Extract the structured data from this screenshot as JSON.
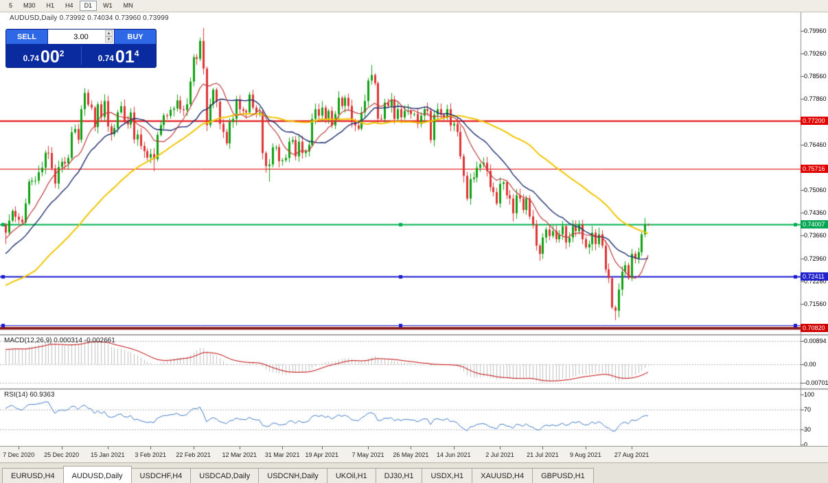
{
  "toolbar": {
    "periods": [
      {
        "label": "5"
      },
      {
        "label": "M30"
      },
      {
        "label": "H1"
      },
      {
        "label": "H4"
      },
      {
        "label": "D1",
        "active": true
      },
      {
        "label": "W1"
      },
      {
        "label": "MN"
      }
    ]
  },
  "chart_header": {
    "text": "AUDUSD,Daily 0.73992 0.74034 0.73960 0.73999"
  },
  "trade_panel": {
    "sell_label": "SELL",
    "buy_label": "BUY",
    "volume": "3.00",
    "bid_main": "0.74",
    "bid_big": "00",
    "bid_sup": "2",
    "ask_main": "0.74",
    "ask_big": "01",
    "ask_sup": "4"
  },
  "price_axis": {
    "ticks": [
      "0.79960",
      "0.79260",
      "0.78560",
      "0.77860",
      "0.77160",
      "0.76460",
      "0.75760",
      "0.75060",
      "0.74360",
      "0.73660",
      "0.72960",
      "0.72260",
      "0.71560",
      "0.70860"
    ]
  },
  "hlines": [
    {
      "value": 0.772,
      "color": "#E00000",
      "width": 2,
      "tag": "0.77200",
      "tag_color": "#E00000"
    },
    {
      "value": 0.75716,
      "color": "#E00000",
      "width": 1,
      "tag": "0.75716",
      "tag_color": "#E00000"
    },
    {
      "value": 0.74007,
      "color": "#00B050",
      "width": 2,
      "tag": "0.74007",
      "tag_color": "#00A651",
      "handles": true
    },
    {
      "value": 0.72411,
      "color": "#1A1AD0",
      "width": 2,
      "tag": "0.72411",
      "tag_color": "#2222CC",
      "handles": true
    },
    {
      "value": 0.7091,
      "color": "#1A1AD0",
      "width": 1,
      "handles": true
    },
    {
      "value": 0.7082,
      "color": "#8A1A1A",
      "width": 4,
      "tag": "0.70820",
      "tag_color": "#D00000"
    }
  ],
  "panels": {
    "macd": {
      "label": "MACD(12,26,9) 0.000314 -0.002661",
      "axis": [
        {
          "text": "0.00894",
          "v": 0.00894
        },
        {
          "text": "0.00",
          "v": 0
        },
        {
          "text": "-0.00701",
          "v": -0.00701
        }
      ]
    },
    "rsi": {
      "label": "RSI(14) 60.9363",
      "axis": [
        {
          "text": "100",
          "v": 100
        },
        {
          "text": "70",
          "v": 70
        },
        {
          "text": "30",
          "v": 30
        },
        {
          "text": "0",
          "v": 0
        }
      ],
      "levels": [
        70,
        30
      ]
    }
  },
  "date_axis": [
    {
      "text": "7 Dec 2020",
      "i": 4
    },
    {
      "text": "25 Dec 2020",
      "i": 17
    },
    {
      "text": "15 Jan 2021",
      "i": 31
    },
    {
      "text": "3 Feb 2021",
      "i": 44
    },
    {
      "text": "22 Feb 2021",
      "i": 57
    },
    {
      "text": "12 Mar 2021",
      "i": 71
    },
    {
      "text": "31 Mar 2021",
      "i": 84
    },
    {
      "text": "19 Apr 2021",
      "i": 96
    },
    {
      "text": "7 May 2021",
      "i": 110
    },
    {
      "text": "26 May 2021",
      "i": 123
    },
    {
      "text": "14 Jun 2021",
      "i": 136
    },
    {
      "text": "2 Jul 2021",
      "i": 150
    },
    {
      "text": "21 Jul 2021",
      "i": 163
    },
    {
      "text": "9 Aug 2021",
      "i": 176
    },
    {
      "text": "27 Aug 2021",
      "i": 190
    }
  ],
  "tabs": [
    {
      "label": "EURUSD,H4"
    },
    {
      "label": "AUDUSD,Daily",
      "active": true
    },
    {
      "label": "USDCHF,H4"
    },
    {
      "label": "USDCAD,Daily"
    },
    {
      "label": "USDCNH,Daily"
    },
    {
      "label": "UKOil,H1"
    },
    {
      "label": "DJ30,H1"
    },
    {
      "label": "USDX,H1"
    },
    {
      "label": "XAUUSD,H4"
    },
    {
      "label": "GBPUSD,H1"
    }
  ],
  "chart_data": {
    "type": "candlestick",
    "symbol": "AUDUSD",
    "timeframe": "Daily",
    "ohlc_header": {
      "open": "0.73992",
      "high": "0.74034",
      "low": "0.73960",
      "close": "0.73999"
    },
    "y_range": {
      "max": 0.8053,
      "min": 0.7065
    },
    "up_color": "#0FA00F",
    "down_color": "#DF3232",
    "mas": [
      {
        "period": 50,
        "color": "#F2C500",
        "width": 2
      },
      {
        "period": 20,
        "color": "#1B2B6E",
        "width": 1.4
      },
      {
        "period": 10,
        "color": "#C03A3A",
        "width": 1.2
      }
    ],
    "macd": {
      "fast": 12,
      "slow": 26,
      "signal": 9,
      "hist_color": "#C0C0C0",
      "signal_color": "#C00000"
    },
    "rsi": {
      "period": 14,
      "color": "#3F79C9"
    },
    "prehistory": [
      0.7035,
      0.702,
      0.7045,
      0.706,
      0.705,
      0.7075,
      0.709,
      0.708,
      0.7105,
      0.712,
      0.711,
      0.7135,
      0.715,
      0.714,
      0.716,
      0.7175,
      0.7165,
      0.719,
      0.7205,
      0.7195,
      0.7215,
      0.723,
      0.722,
      0.7245,
      0.726,
      0.725,
      0.727,
      0.7285,
      0.7275,
      0.73,
      0.7315,
      0.7305,
      0.733,
      0.7345,
      0.7335,
      0.7355,
      0.737,
      0.736,
      0.7385,
      0.74
    ],
    "closes": [
      0.7375,
      0.7412,
      0.7442,
      0.7424,
      0.7415,
      0.7407,
      0.7465,
      0.7532,
      0.7535,
      0.7535,
      0.7561,
      0.7575,
      0.7621,
      0.762,
      0.7573,
      0.7526,
      0.7577,
      0.7593,
      0.7588,
      0.7605,
      0.7684,
      0.7694,
      0.7661,
      0.7755,
      0.7805,
      0.7769,
      0.776,
      0.77,
      0.777,
      0.7731,
      0.778,
      0.7702,
      0.7678,
      0.7697,
      0.7745,
      0.7764,
      0.7715,
      0.7708,
      0.7745,
      0.7662,
      0.7677,
      0.7642,
      0.7626,
      0.7606,
      0.7617,
      0.7601,
      0.7676,
      0.7706,
      0.7736,
      0.7734,
      0.7753,
      0.7757,
      0.7782,
      0.7755,
      0.7752,
      0.777,
      0.784,
      0.7915,
      0.791,
      0.7965,
      0.788,
      0.7706,
      0.777,
      0.7815,
      0.7778,
      0.771,
      0.7685,
      0.765,
      0.7716,
      0.7725,
      0.7785,
      0.7755,
      0.775,
      0.7745,
      0.78,
      0.776,
      0.7745,
      0.7745,
      0.762,
      0.758,
      0.7585,
      0.7638,
      0.7638,
      0.7595,
      0.7598,
      0.7605,
      0.7655,
      0.766,
      0.761,
      0.7655,
      0.762,
      0.7625,
      0.7645,
      0.7725,
      0.7755,
      0.7735,
      0.776,
      0.7725,
      0.775,
      0.7705,
      0.774,
      0.779,
      0.7765,
      0.779,
      0.7765,
      0.7715,
      0.7705,
      0.7695,
      0.7745,
      0.778,
      0.7843,
      0.786,
      0.7835,
      0.7726,
      0.7725,
      0.7775,
      0.7765,
      0.7785,
      0.7725,
      0.7755,
      0.773,
      0.775,
      0.775,
      0.774,
      0.774,
      0.771,
      0.7735,
      0.7755,
      0.775,
      0.766,
      0.7738,
      0.7755,
      0.7738,
      0.773,
      0.7755,
      0.7705,
      0.771,
      0.7685,
      0.761,
      0.755,
      0.748,
      0.754,
      0.7545,
      0.7575,
      0.7585,
      0.759,
      0.7565,
      0.7515,
      0.75,
      0.7465,
      0.7525,
      0.753,
      0.749,
      0.748,
      0.7435,
      0.749,
      0.748,
      0.7445,
      0.748,
      0.7425,
      0.74,
      0.7335,
      0.731,
      0.736,
      0.7385,
      0.7365,
      0.738,
      0.7355,
      0.737,
      0.7395,
      0.7345,
      0.736,
      0.7395,
      0.738,
      0.74,
      0.7355,
      0.733,
      0.734,
      0.7375,
      0.734,
      0.737,
      0.7335,
      0.7262,
      0.7235,
      0.7145,
      0.7135,
      0.72,
      0.7255,
      0.7275,
      0.7235,
      0.731,
      0.7295,
      0.7315,
      0.737,
      0.74,
      0.73999
    ],
    "extremes": {
      "0": {
        "low": 0.734
      },
      "24": {
        "high": 0.782
      },
      "45": {
        "low": 0.7564
      },
      "59": {
        "high": 0.7975
      },
      "60": {
        "high": 0.8005
      },
      "80": {
        "low": 0.7532
      },
      "111": {
        "high": 0.7891
      },
      "154": {
        "low": 0.741
      },
      "162": {
        "low": 0.7289
      },
      "185": {
        "low": 0.7106
      },
      "195": {
        "high": 0.74034,
        "low": 0.7396
      }
    }
  }
}
